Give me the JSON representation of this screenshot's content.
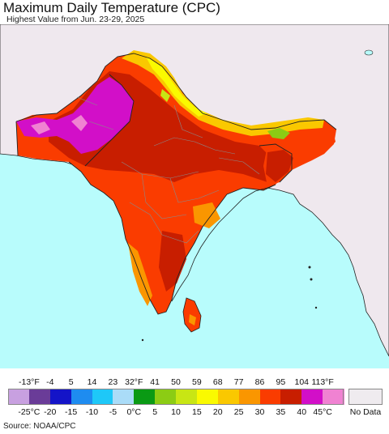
{
  "header": {
    "title": "Maximum Daily Temperature (CPC)",
    "subtitle": "Highest Value from Jun. 23-29, 2025"
  },
  "map": {
    "ocean_color": "#b8fcfc",
    "land_nodata_color": "#efe8ee",
    "border_color": "#222222",
    "subdivision_color": "#8a8a8a"
  },
  "legend": {
    "fahrenheit_labels": [
      "-13°F",
      "-4",
      "5",
      "14",
      "23",
      "32°F",
      "41",
      "50",
      "59",
      "68",
      "77",
      "86",
      "95",
      "104",
      "113°F"
    ],
    "celsius_labels": [
      "-25°C",
      "-20",
      "-15",
      "-10",
      "-5",
      "0°C",
      "5",
      "10",
      "15",
      "20",
      "25",
      "30",
      "35",
      "40",
      "45°C"
    ],
    "colors": [
      "#c8a0e0",
      "#6a3c98",
      "#1414c8",
      "#1e8cf0",
      "#1ec8f8",
      "#aadcf8",
      "#0a9a14",
      "#8ccc14",
      "#c8e614",
      "#fafa00",
      "#fac800",
      "#fa9600",
      "#fa3c00",
      "#c81e00",
      "#d20fc8",
      "#f082d2"
    ],
    "nodata_label": "No Data",
    "nodata_color": "#efebef"
  },
  "footer": {
    "source": "Source: NOAA/CPC"
  }
}
